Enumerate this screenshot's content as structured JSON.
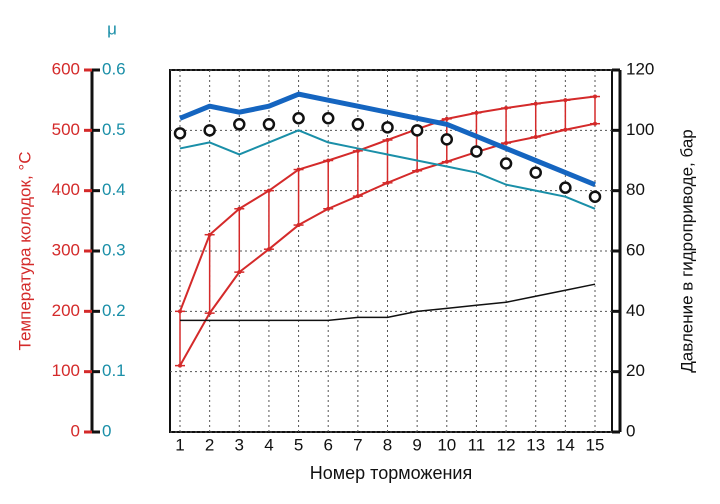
{
  "chart_data": {
    "type": "line",
    "x_label": "Номер торможения",
    "categories": [
      "1",
      "2",
      "3",
      "4",
      "5",
      "6",
      "7",
      "8",
      "9",
      "10",
      "11",
      "12",
      "13",
      "14",
      "15"
    ],
    "y_label": "Температура колодок, °C",
    "y_color": "#d42a2a",
    "ylim": [
      0,
      600
    ],
    "yticks": [
      0,
      100,
      200,
      300,
      400,
      500,
      600
    ],
    "y2_label": "μ",
    "y2_color": "#1a8fa8",
    "y2lim": [
      0,
      0.6
    ],
    "y2ticks": [
      0,
      0.1,
      0.2,
      0.3,
      0.4,
      0.5,
      0.6
    ],
    "y3_label": "Давление в гидроприводе, бар",
    "y3_color": "#111111",
    "y3lim": [
      0,
      120
    ],
    "y3ticks": [
      0,
      20,
      40,
      60,
      80,
      100,
      120
    ],
    "grid": true,
    "range_bars": [
      0,
      1
    ],
    "series": [
      {
        "color": "#d42a2a",
        "axis": "y",
        "values": [
          200,
          327,
          370,
          400,
          435,
          450,
          466,
          484,
          502,
          519,
          529,
          537,
          544,
          550,
          556
        ]
      },
      {
        "color": "#d42a2a",
        "axis": "y",
        "values": [
          110,
          197,
          265,
          303,
          343,
          370,
          391,
          413,
          433,
          448,
          464,
          479,
          489,
          501,
          511
        ]
      },
      {
        "color": "#1565c0",
        "axis": "y2",
        "width": 5,
        "values": [
          0.52,
          0.54,
          0.53,
          0.54,
          0.56,
          0.55,
          0.54,
          0.53,
          0.52,
          0.51,
          0.49,
          0.47,
          0.45,
          0.43,
          0.41
        ]
      },
      {
        "color": "#1a8fa8",
        "axis": "y2",
        "width": 2,
        "values": [
          0.47,
          0.48,
          0.46,
          0.48,
          0.5,
          0.48,
          0.47,
          0.46,
          0.45,
          0.44,
          0.43,
          0.41,
          0.4,
          0.39,
          0.37
        ]
      },
      {
        "color": "#111111",
        "axis": "y2",
        "marker": "circle",
        "values": [
          0.495,
          0.5,
          0.51,
          0.51,
          0.52,
          0.52,
          0.51,
          0.505,
          0.5,
          0.485,
          0.465,
          0.445,
          0.43,
          0.405,
          0.39
        ]
      },
      {
        "color": "#111111",
        "axis": "y3",
        "width": 1.5,
        "values": [
          37,
          37,
          37,
          37,
          37,
          37,
          38,
          38,
          40,
          41,
          42,
          43,
          45,
          47,
          49
        ]
      }
    ]
  }
}
